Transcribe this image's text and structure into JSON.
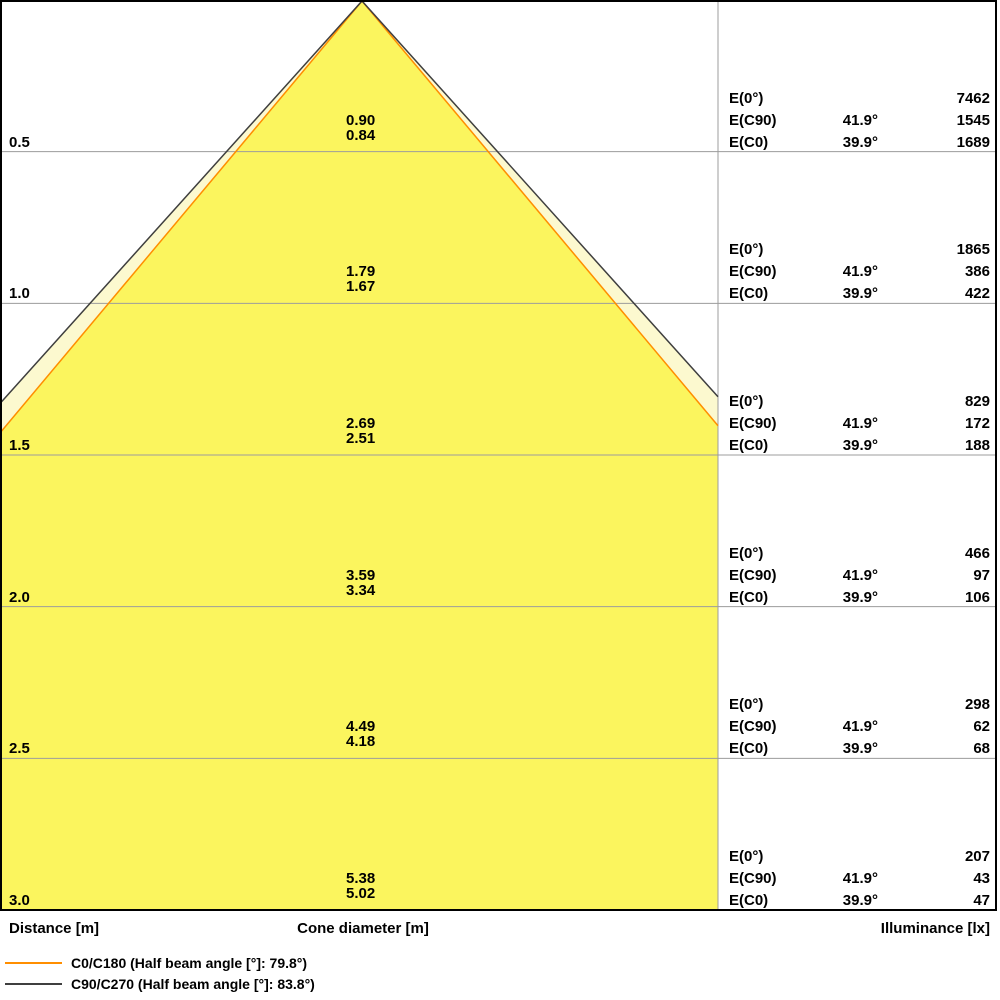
{
  "chart_data": {
    "type": "area",
    "subtype": "photometric-cone-diagram",
    "axis_labels": {
      "distance": "Distance [m]",
      "cone_diameter": "Cone diameter [m]",
      "illuminance": "Illuminance [lx]"
    },
    "table_labels": {
      "e0": "E(0°)",
      "ec90": "E(C90)",
      "ec0": "E(C0)"
    },
    "rows": [
      {
        "distance": "0.5",
        "cone_c90": "0.90",
        "cone_c0": "0.84",
        "e0": "7462",
        "c90_angle": "41.9°",
        "ec90": "1545",
        "c0_angle": "39.9°",
        "ec0": "1689"
      },
      {
        "distance": "1.0",
        "cone_c90": "1.79",
        "cone_c0": "1.67",
        "e0": "1865",
        "c90_angle": "41.9°",
        "ec90": "386",
        "c0_angle": "39.9°",
        "ec0": "422"
      },
      {
        "distance": "1.5",
        "cone_c90": "2.69",
        "cone_c0": "2.51",
        "e0": "829",
        "c90_angle": "41.9°",
        "ec90": "172",
        "c0_angle": "39.9°",
        "ec0": "188"
      },
      {
        "distance": "2.0",
        "cone_c90": "3.59",
        "cone_c0": "3.34",
        "e0": "466",
        "c90_angle": "41.9°",
        "ec90": "97",
        "c0_angle": "39.9°",
        "ec0": "106"
      },
      {
        "distance": "2.5",
        "cone_c90": "4.49",
        "cone_c0": "4.18",
        "e0": "298",
        "c90_angle": "41.9°",
        "ec90": "62",
        "c0_angle": "39.9°",
        "ec0": "68"
      },
      {
        "distance": "3.0",
        "cone_c90": "5.38",
        "cone_c0": "5.02",
        "e0": "207",
        "c90_angle": "41.9°",
        "ec90": "43",
        "c0_angle": "39.9°",
        "ec0": "47"
      }
    ],
    "legend": [
      {
        "label": "C0/C180 (Half beam angle [°]: 79.8°)",
        "color": "#FF8E00",
        "half_angle_deg": 39.9
      },
      {
        "label": "C90/C270 (Half beam angle [°]: 83.8°)",
        "color": "#3F3F3F",
        "half_angle_deg": 41.9
      }
    ],
    "colors": {
      "inner_fill": "#FBF55E",
      "outer_fill": "#FCF9CF",
      "grid": "#9C9C9C",
      "border": "#000000"
    }
  }
}
